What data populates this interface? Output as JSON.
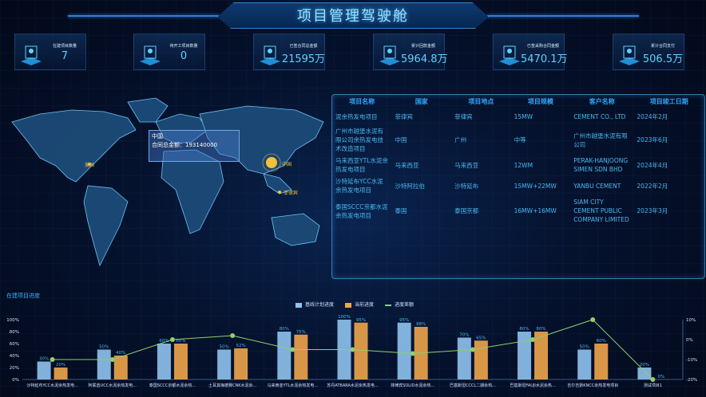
{
  "header": {
    "title": "项目管理驾驶舱"
  },
  "kpis": [
    {
      "label": "在建项目数量",
      "value": "7",
      "icon": "map-pin-icon"
    },
    {
      "label": "待开工项目数量",
      "value": "0",
      "icon": "buildings-icon"
    },
    {
      "label": "已签合同总金额",
      "value": "21595万",
      "icon": "bar-growth-icon"
    },
    {
      "label": "累计回款金额",
      "value": "5964.8万",
      "icon": "yen-coin-icon"
    },
    {
      "label": "已签采购合同金额",
      "value": "5470.1万",
      "icon": "coin-stack-icon"
    },
    {
      "label": "累计合同支付",
      "value": "506.5万",
      "icon": "layers-icon"
    }
  ],
  "map": {
    "tooltip": {
      "country": "中国",
      "text": "合同总金额：193140000"
    },
    "markers": [
      "美国",
      "中国",
      "菲律宾"
    ]
  },
  "table": {
    "headers": [
      "项目名称",
      "国家",
      "项目地点",
      "项目规模",
      "客户名称",
      "项目竣工日期"
    ],
    "rows": [
      [
        "泥余热发电项目",
        "菲律宾",
        "菲律宾",
        "15MW",
        "CEMENT CO., LTD",
        "2024年2月"
      ],
      [
        "广州市越堡水泥有限公司余热发电技术改造项目",
        "中国",
        "广州",
        "中等",
        "广州市越堡水泥有限公司",
        "2023年6月"
      ],
      [
        "马来西亚YTL水泥余热发电项目",
        "马来西亚",
        "马来西亚",
        "12WM",
        "PERAK-HANJOONG SIMEN SDN BHD",
        "2024年4月"
      ],
      [
        "沙特延布YCC水泥余热发电项目",
        "沙特阿拉伯",
        "沙特延布",
        "15MW+22MW",
        "YANBU CEMENT",
        "2022年2月"
      ],
      [
        "泰国SCCC京都水泥余热发电项目",
        "泰国",
        "泰国京都",
        "16MW+16MW",
        "SIAM CITY CEMENT PUBLIC COMPANY LIMITED",
        "2023年3月"
      ]
    ]
  },
  "chart_section": {
    "title": "在建项目进度"
  },
  "chart_data": {
    "type": "bar",
    "categories": [
      "沙特延布YCC水泥余热发电...",
      "阿联酋UCC水泥余热发电...",
      "泰国SCCC京都水泥余热...",
      "土耳其梅德赛CNK水泥余...",
      "马来西亚YTL水泥余热发电...",
      "苏丹ATBARA水泥余热发电...",
      "菲律宾SOLID水泥余热...",
      "巴基斯坦CCCL二期余热...",
      "巴基斯坦FAUJI水泥余热...",
      "吉尔吉斯KNCC余热发电项目",
      "测试项目1"
    ],
    "series": [
      {
        "name": "基线计划进度",
        "type": "bar",
        "axis": "left",
        "color": "#8fc3ee",
        "values": [
          30,
          50,
          60,
          50,
          80,
          100,
          95,
          70,
          80,
          50,
          20
        ]
      },
      {
        "name": "当前进度",
        "type": "bar",
        "axis": "left",
        "color": "#f0a54a",
        "values": [
          20,
          40,
          60,
          52,
          75,
          95,
          88,
          65,
          80,
          60,
          0
        ]
      },
      {
        "name": "进度差额",
        "type": "line",
        "axis": "right",
        "color": "#8fcf6f",
        "values": [
          -10,
          -10,
          0,
          2,
          -5,
          -5,
          -7,
          -5,
          0,
          10,
          -20
        ]
      }
    ],
    "yleft": {
      "range": [
        0,
        100
      ],
      "ticks": [
        "0%",
        "20%",
        "40%",
        "60%",
        "80%",
        "100%"
      ]
    },
    "yright": {
      "range": [
        -20,
        10
      ],
      "ticks": [
        "-20%",
        "-10%",
        "0%",
        "10%"
      ]
    },
    "legend": "top-center"
  }
}
